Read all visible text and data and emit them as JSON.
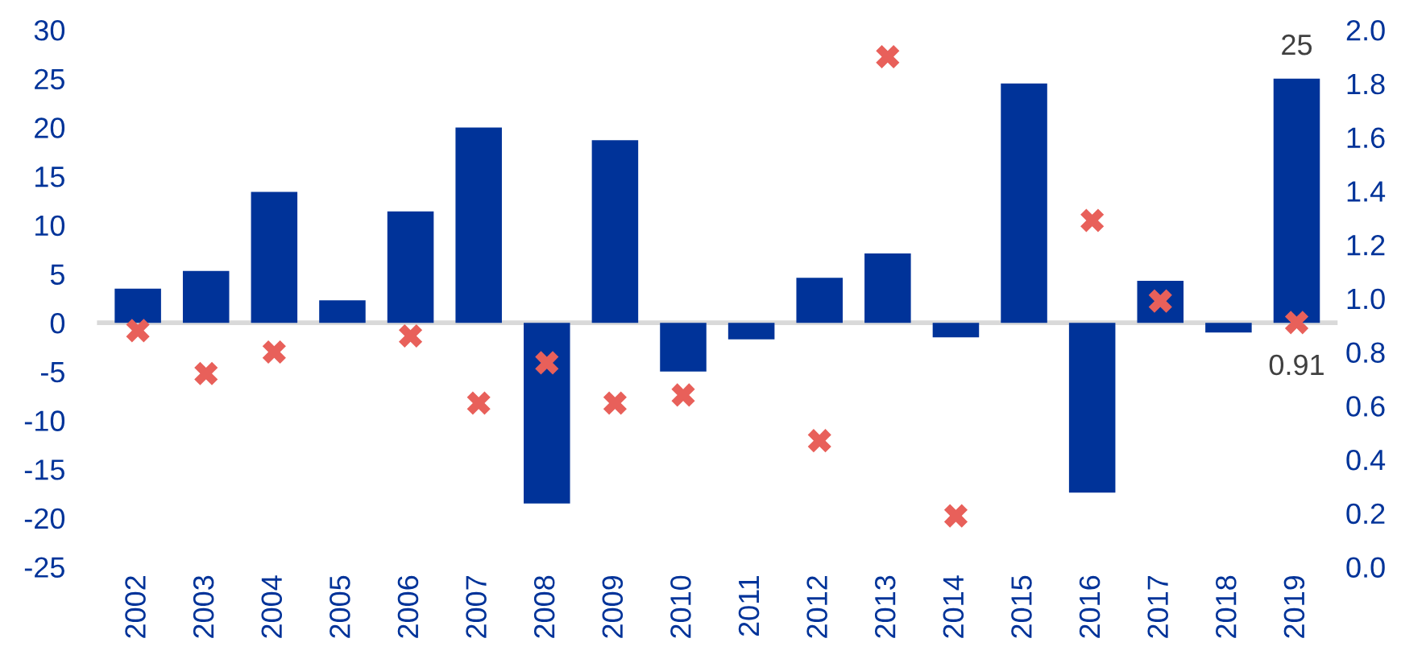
{
  "chart_data": {
    "type": "bar",
    "categories": [
      "2002",
      "2003",
      "2004",
      "2005",
      "2006",
      "2007",
      "2008",
      "2009",
      "2010",
      "2011",
      "2012",
      "2013",
      "2014",
      "2015",
      "2016",
      "2017",
      "2018",
      "2019"
    ],
    "series": [
      {
        "color": "#003399",
        "values": [
          3.5,
          5.3,
          13.4,
          2.3,
          11.4,
          20.0,
          -18.5,
          18.7,
          -5.0,
          -1.7,
          4.6,
          7.1,
          -1.5,
          24.5,
          -17.4,
          4.3,
          -1.0,
          25
        ],
        "value_labels": [
          null,
          null,
          null,
          null,
          null,
          null,
          null,
          null,
          null,
          null,
          null,
          null,
          null,
          null,
          null,
          null,
          null,
          "25"
        ]
      },
      {
        "type": "scatter",
        "axis": "y2",
        "marker": "cross",
        "color": "#e8605a",
        "values": [
          0.88,
          0.72,
          0.8,
          null,
          0.86,
          0.61,
          0.76,
          0.61,
          0.64,
          null,
          0.47,
          1.9,
          0.19,
          null,
          1.29,
          0.99,
          null,
          0.91
        ],
        "value_labels": [
          null,
          null,
          null,
          null,
          null,
          null,
          null,
          null,
          null,
          null,
          null,
          null,
          null,
          null,
          null,
          null,
          null,
          "0.91"
        ]
      }
    ],
    "ylim": [
      -25,
      30
    ],
    "yticks": [
      -25,
      -20,
      -15,
      -10,
      -5,
      0,
      5,
      10,
      15,
      20,
      25,
      30
    ],
    "y2lim": [
      0.0,
      2.0
    ],
    "y2ticks": [
      {
        "value": 0,
        "label": "0.0"
      },
      {
        "value": 0.2,
        "label": "0.2"
      },
      {
        "value": 0.4,
        "label": "0.4"
      },
      {
        "value": 0.6,
        "label": "0.6"
      },
      {
        "value": 0.8,
        "label": "0.8"
      },
      {
        "value": 1.0,
        "label": "1.0"
      },
      {
        "value": 1.2,
        "label": "1.2"
      },
      {
        "value": 1.4,
        "label": "1.4"
      },
      {
        "value": 1.6,
        "label": "1.6"
      },
      {
        "value": 1.8,
        "label": "1.8"
      },
      {
        "value": 2.0,
        "label": "2.0"
      }
    ],
    "ref_lines": [
      {
        "axis": "y",
        "value": 0,
        "color": "#d9d9d9"
      }
    ],
    "legend": false
  }
}
